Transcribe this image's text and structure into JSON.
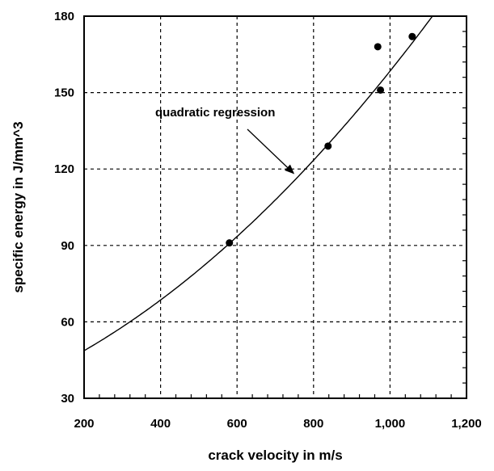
{
  "chart_data": {
    "type": "scatter",
    "xlabel": "crack velocity in m/s",
    "ylabel": "specific energy in J/mm^3",
    "xlim": [
      200,
      1200
    ],
    "ylim": [
      30,
      180
    ],
    "x_ticks": [
      200,
      400,
      600,
      800,
      1000,
      1200
    ],
    "x_tick_labels": [
      "200",
      "400",
      "600",
      "800",
      "1,000",
      "1,200"
    ],
    "y_ticks": [
      30,
      60,
      90,
      120,
      150,
      180
    ],
    "y_tick_labels": [
      "30",
      "60",
      "90",
      "120",
      "150",
      "180"
    ],
    "grid": true,
    "points": [
      {
        "x": 580,
        "y": 91
      },
      {
        "x": 838,
        "y": 129
      },
      {
        "x": 968,
        "y": 168
      },
      {
        "x": 975,
        "y": 151
      },
      {
        "x": 1058,
        "y": 172
      }
    ],
    "regression": {
      "type": "quadratic",
      "x": [
        200,
        300,
        400,
        500,
        600,
        700,
        800,
        900,
        1000,
        1100
      ],
      "y": [
        49,
        58,
        68,
        80,
        94,
        108,
        124,
        140,
        158,
        178
      ]
    },
    "annotation": {
      "text": "quadratic regression",
      "target": {
        "x": 750,
        "y": 118
      }
    },
    "colors": {
      "axis": "#000000",
      "grid": "#000000",
      "line": "#000000",
      "marker": "#000000"
    }
  }
}
